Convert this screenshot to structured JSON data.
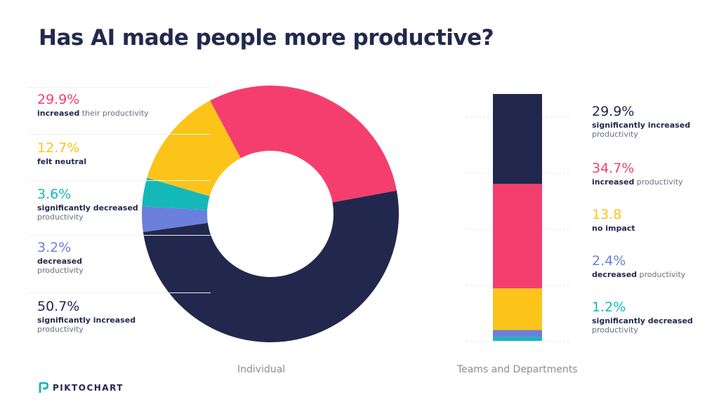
{
  "title": "Has AI made people more productive?",
  "colors": {
    "dark": "#22284d",
    "pink": "#f43f6e",
    "yellow": "#fcc419",
    "teal": "#14b8b8",
    "blue": "#6b7fdc",
    "grid": "#cdeeea"
  },
  "chart_data": [
    {
      "type": "pie",
      "subtype": "donut",
      "caption": "Individual",
      "slices": [
        {
          "value": 29.9,
          "label": "29.9%",
          "bold": "increased",
          "rest": " their productivity",
          "color": "#f43f6e"
        },
        {
          "value": 50.7,
          "label": "50.7%",
          "bold": "significantly increased",
          "rest": "productivity",
          "color": "#22284d"
        },
        {
          "value": 3.2,
          "label": "3.2%",
          "bold": "decreased",
          "rest": "productivity",
          "color": "#6b7fdc"
        },
        {
          "value": 3.6,
          "label": "3.6%",
          "bold": "significantly decreased",
          "rest": "productivity",
          "color": "#14b8b8"
        },
        {
          "value": 12.7,
          "label": "12.7%",
          "bold": "felt neutral",
          "rest": "",
          "color": "#fcc419"
        }
      ]
    },
    {
      "type": "bar",
      "subtype": "stacked",
      "caption": "Teams and Departments",
      "segments": [
        {
          "value": 29.9,
          "label": "29.9%",
          "bold": "significantly increased",
          "rest": "productivity",
          "color": "#22284d"
        },
        {
          "value": 34.7,
          "label": "34.7%",
          "bold": "increased",
          "rest": " productivity",
          "color": "#f43f6e"
        },
        {
          "value": 13.8,
          "label": "13.8",
          "bold": "no impact",
          "rest": "",
          "color": "#fcc419"
        },
        {
          "value": 2.4,
          "label": "2.4%",
          "bold": "decreased",
          "rest": " productivity",
          "color": "#6b7fdc"
        },
        {
          "value": 1.2,
          "label": "1.2%",
          "bold": "significantly decreased",
          "rest": "productivity",
          "color": "#14b8b8"
        }
      ]
    }
  ],
  "left_legend_order": [
    0,
    4,
    3,
    2,
    1
  ],
  "logo": "PIKTOCHART"
}
